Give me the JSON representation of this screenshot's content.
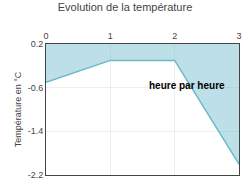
{
  "chart_data": {
    "type": "area",
    "title": "Evolution de la température",
    "xlabel": "heure par heure",
    "ylabel": "Température en °C",
    "x": [
      0,
      1,
      2,
      3
    ],
    "values": [
      -0.5,
      -0.1,
      -0.1,
      -2.0
    ],
    "color": "#6ab8cc",
    "xlim": [
      0,
      3
    ],
    "ylim": [
      -2.2,
      0.2
    ],
    "xticks": [
      0,
      1,
      2,
      3
    ],
    "yticks": [
      -2.2,
      -1.4,
      -0.6,
      0.2
    ],
    "grid": true
  }
}
